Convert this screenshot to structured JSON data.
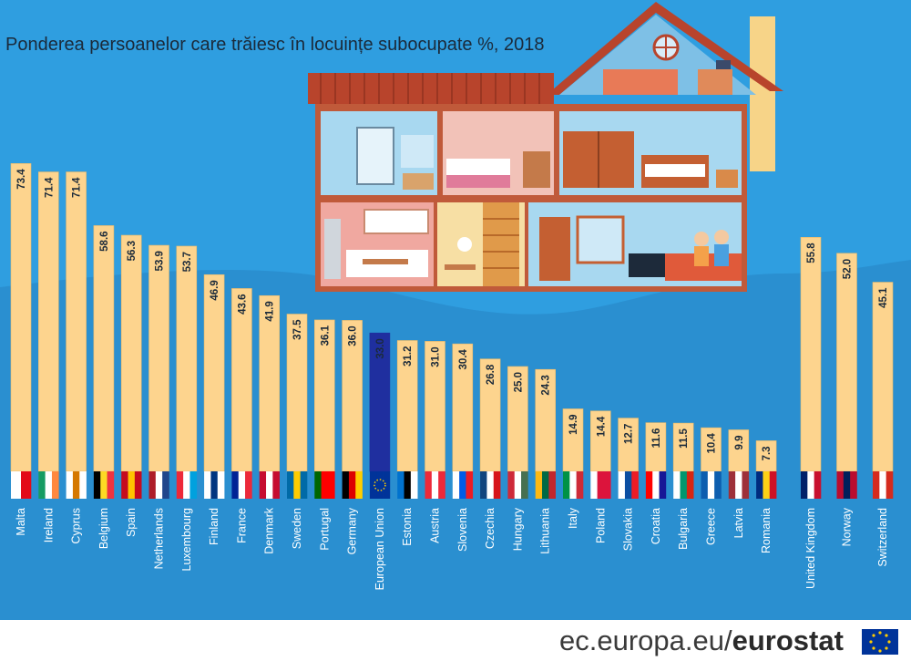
{
  "chart_data": {
    "type": "bar",
    "title": "Ponderea persoanelor care trăiesc în locuințe subocupate %, 2018",
    "categories": [
      "Malta",
      "Ireland",
      "Cyprus",
      "Belgium",
      "Spain",
      "Netherlands",
      "Luxembourg",
      "Finland",
      "France",
      "Denmark",
      "Sweden",
      "Portugal",
      "Germany",
      "European Union",
      "Estonia",
      "Austria",
      "Slovenia",
      "Czechia",
      "Hungary",
      "Lithuania",
      "Italy",
      "Poland",
      "Slovakia",
      "Croatia",
      "Bulgaria",
      "Greece",
      "Latvia",
      "Romania",
      "United Kingdom",
      "Norway",
      "Switzerland"
    ],
    "values": [
      73.4,
      71.4,
      71.4,
      58.6,
      56.3,
      53.9,
      53.7,
      46.9,
      43.6,
      41.9,
      37.5,
      36.1,
      36.0,
      33.0,
      31.2,
      31.0,
      30.4,
      26.8,
      25.0,
      24.3,
      14.9,
      14.4,
      12.7,
      11.6,
      11.5,
      10.4,
      9.9,
      7.3,
      55.8,
      52.0,
      45.1
    ],
    "value_labels": [
      "73.4",
      "71.4",
      "71.4",
      "58.6",
      "56.3",
      "53.9",
      "53.7",
      "46.9",
      "43.6",
      "41.9",
      "37.5",
      "36.1",
      "36.0",
      "33.0",
      "31.2",
      "31.0",
      "30.4",
      "26.8",
      "25.0",
      "24.3",
      "14.9",
      "14.4",
      "12.7",
      "11.6",
      "11.5",
      "10.4",
      "9.9",
      "7.3",
      "55.8",
      "52.0",
      "45.1"
    ],
    "highlight": "European Union",
    "ylim": [
      0,
      80
    ],
    "grid": false,
    "xlabel": "",
    "ylabel": ""
  },
  "colors": {
    "background": "#2f9ee0",
    "bar": "#fdd48e",
    "bar_highlight": "#1f2f9f",
    "bar_outline": "#e8b96a",
    "value_text": "#1b2a3a",
    "category_text": "#ffffff"
  },
  "flags": {
    "Malta": [
      "#ffffff",
      "#e30a17"
    ],
    "Ireland": [
      "#169b62",
      "#ffffff",
      "#ff883e"
    ],
    "Cyprus": [
      "#ffffff",
      "#d57800",
      "#ffffff"
    ],
    "Belgium": [
      "#000000",
      "#fdda24",
      "#ef3340"
    ],
    "Spain": [
      "#c60b1e",
      "#ffc400",
      "#c60b1e"
    ],
    "Netherlands": [
      "#ae1c28",
      "#ffffff",
      "#21468b"
    ],
    "Luxembourg": [
      "#ed2939",
      "#ffffff",
      "#00a1de"
    ],
    "Finland": [
      "#ffffff",
      "#003580",
      "#ffffff"
    ],
    "France": [
      "#002395",
      "#ffffff",
      "#ed2939"
    ],
    "Denmark": [
      "#c60c30",
      "#ffffff",
      "#c60c30"
    ],
    "Sweden": [
      "#006aa7",
      "#fecc00",
      "#006aa7"
    ],
    "Portugal": [
      "#006600",
      "#ff0000",
      "#ff0000"
    ],
    "Germany": [
      "#000000",
      "#dd0000",
      "#ffce00"
    ],
    "European Union": [
      "#003399",
      "#003399",
      "#003399"
    ],
    "Estonia": [
      "#0072ce",
      "#000000",
      "#ffffff"
    ],
    "Austria": [
      "#ed2939",
      "#ffffff",
      "#ed2939"
    ],
    "Slovenia": [
      "#ffffff",
      "#005ce6",
      "#ed1c24"
    ],
    "Czechia": [
      "#11457e",
      "#ffffff",
      "#d7141a"
    ],
    "Hungary": [
      "#ce2939",
      "#ffffff",
      "#477050"
    ],
    "Lithuania": [
      "#fdb913",
      "#006a44",
      "#c1272d"
    ],
    "Italy": [
      "#009246",
      "#ffffff",
      "#ce2b37"
    ],
    "Poland": [
      "#ffffff",
      "#dc143c",
      "#dc143c"
    ],
    "Slovakia": [
      "#ffffff",
      "#0b4ea2",
      "#ee1c25"
    ],
    "Croatia": [
      "#ff0000",
      "#ffffff",
      "#171796"
    ],
    "Bulgaria": [
      "#ffffff",
      "#00966e",
      "#d62612"
    ],
    "Greece": [
      "#0d5eaf",
      "#ffffff",
      "#0d5eaf"
    ],
    "Latvia": [
      "#9e3039",
      "#ffffff",
      "#9e3039"
    ],
    "Romania": [
      "#002b7f",
      "#fcd116",
      "#ce1126"
    ],
    "United Kingdom": [
      "#012169",
      "#ffffff",
      "#c8102e"
    ],
    "Norway": [
      "#ba0c2f",
      "#00205b",
      "#ba0c2f"
    ],
    "Switzerland": [
      "#d52b1e",
      "#ffffff",
      "#d52b1e"
    ]
  },
  "footer": {
    "site": "ec.europa.eu/",
    "brand": "eurostat",
    "logo_icon": "eu-flag-icon"
  },
  "illustration": {
    "icon": "house-cross-section-icon"
  }
}
